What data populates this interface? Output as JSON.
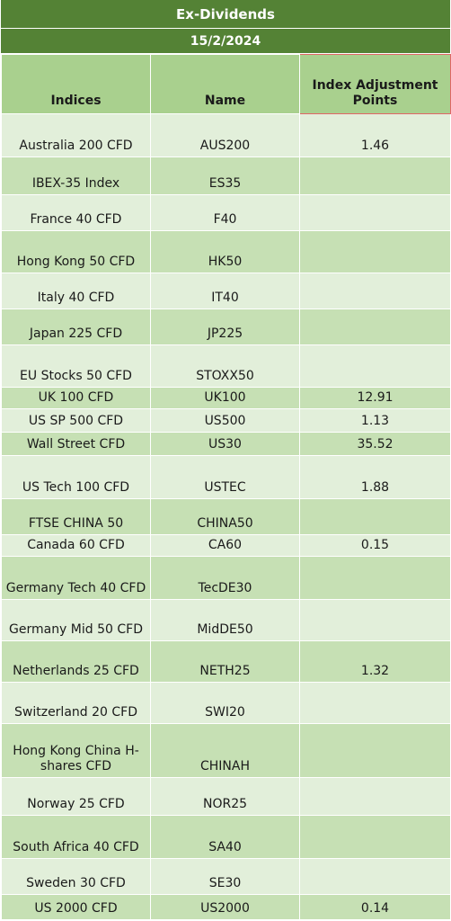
{
  "header": {
    "title": "Ex-Dividends",
    "date": "15/2/2024"
  },
  "columns": [
    "Indices",
    "Name",
    "Index Adjustment Points"
  ],
  "rows": [
    {
      "index": "Australia 200 CFD",
      "name": "AUS200",
      "points": "1.46",
      "h": 48
    },
    {
      "index": "IBEX-35 Index",
      "name": "ES35",
      "points": "",
      "h": 42
    },
    {
      "index": "France 40 CFD",
      "name": "F40",
      "points": "",
      "h": 40
    },
    {
      "index": "Hong Kong 50 CFD",
      "name": "HK50",
      "points": "",
      "h": 47
    },
    {
      "index": "Italy 40 CFD",
      "name": "IT40",
      "points": "",
      "h": 40
    },
    {
      "index": "Japan 225 CFD",
      "name": "JP225",
      "points": "",
      "h": 40
    },
    {
      "index": "EU Stocks 50 CFD",
      "name": "STOXX50",
      "points": "",
      "h": 47
    },
    {
      "index": "UK 100 CFD",
      "name": "UK100",
      "points": "12.91",
      "h": 24
    },
    {
      "index": "US SP 500 CFD",
      "name": "US500",
      "points": "1.13",
      "h": 26
    },
    {
      "index": "Wall Street CFD",
      "name": "US30",
      "points": "35.52",
      "h": 26
    },
    {
      "index": "US Tech 100 CFD",
      "name": "USTEC",
      "points": "1.88",
      "h": 48
    },
    {
      "index": "FTSE CHINA 50",
      "name": "CHINA50",
      "points": "",
      "h": 40
    },
    {
      "index": "Canada 60 CFD",
      "name": "CA60",
      "points": "0.15",
      "h": 24
    },
    {
      "index": "Germany Tech 40 CFD",
      "name": "TecDE30",
      "points": "",
      "h": 48
    },
    {
      "index": "Germany Mid 50 CFD",
      "name": "MidDE50",
      "points": "",
      "h": 46
    },
    {
      "index": "Netherlands 25 CFD",
      "name": "NETH25",
      "points": "1.32",
      "h": 46
    },
    {
      "index": "Switzerland 20 CFD",
      "name": "SWI20",
      "points": "",
      "h": 46
    },
    {
      "index": "Hong Kong China H-shares CFD",
      "name": "CHINAH",
      "points": "",
      "h": 60
    },
    {
      "index": "Norway 25 CFD",
      "name": "NOR25",
      "points": "",
      "h": 42
    },
    {
      "index": "South Africa 40 CFD",
      "name": "SA40",
      "points": "",
      "h": 48
    },
    {
      "index": "Sweden 30 CFD",
      "name": "SE30",
      "points": "",
      "h": 40
    },
    {
      "index": "US 2000 CFD",
      "name": "US2000",
      "points": "0.14",
      "h": 28
    }
  ],
  "colors": {
    "header_dark": "#548235",
    "header_col": "#a9d08e",
    "row_dark": "#c6e0b4",
    "row_light": "#e2efda"
  }
}
